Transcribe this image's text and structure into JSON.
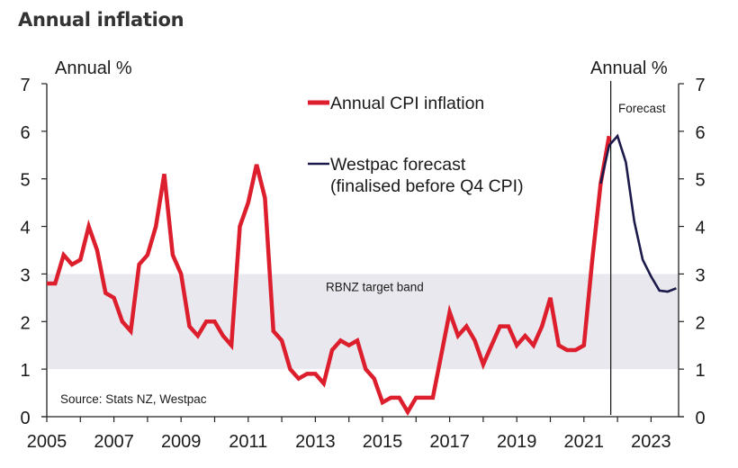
{
  "title": "Annual inflation",
  "chart_data": {
    "type": "line",
    "title": "Annual inflation",
    "xlabel": "",
    "ylabel_left": "Annual %",
    "ylabel_right": "Annual %",
    "xlim": [
      2005,
      2024
    ],
    "ylim": [
      0,
      7
    ],
    "x_ticks": [
      2005,
      2006,
      2007,
      2008,
      2009,
      2010,
      2011,
      2012,
      2013,
      2014,
      2015,
      2016,
      2017,
      2018,
      2019,
      2020,
      2021,
      2022,
      2023
    ],
    "x_tick_labels": [
      "2005",
      "2007",
      "2009",
      "2011",
      "2013",
      "2015",
      "2017",
      "2019",
      "2021",
      "2023"
    ],
    "x_tick_label_years": [
      2005,
      2007,
      2009,
      2011,
      2013,
      2015,
      2017,
      2019,
      2021,
      2023
    ],
    "y_ticks": [
      0,
      1,
      2,
      3,
      4,
      5,
      6,
      7
    ],
    "y_tick_labels": [
      "0",
      "1",
      "2",
      "3",
      "4",
      "5",
      "6",
      "7"
    ],
    "grid": false,
    "target_band": {
      "label": "RBNZ target band",
      "low": 1,
      "high": 3,
      "color": "#e8e8ee"
    },
    "forecast_marker": {
      "label": "Forecast",
      "x": 2021.8
    },
    "source": "Source: Stats NZ, Westpac",
    "legend_placement": "top-center",
    "series": [
      {
        "name": "Annual CPI inflation",
        "color": "#dc1e2d",
        "start": 2005.0,
        "step": 0.25,
        "values": [
          2.8,
          2.8,
          3.4,
          3.2,
          3.3,
          4.0,
          3.5,
          2.6,
          2.5,
          2.0,
          1.8,
          3.2,
          3.4,
          4.0,
          5.1,
          3.4,
          3.0,
          1.9,
          1.7,
          2.0,
          2.0,
          1.7,
          1.5,
          4.0,
          4.5,
          5.3,
          4.6,
          1.8,
          1.6,
          1.0,
          0.8,
          0.9,
          0.9,
          0.7,
          1.4,
          1.6,
          1.5,
          1.6,
          1.0,
          0.8,
          0.3,
          0.4,
          0.4,
          0.1,
          0.4,
          0.4,
          0.4,
          1.3,
          2.2,
          1.7,
          1.9,
          1.6,
          1.1,
          1.5,
          1.9,
          1.9,
          1.5,
          1.7,
          1.5,
          1.9,
          2.5,
          1.5,
          1.4,
          1.4,
          1.5,
          3.3,
          4.9,
          5.9
        ]
      },
      {
        "name": "Westpac forecast (finalised before Q4 CPI)",
        "legend_lines": [
          "Westpac forecast",
          "(finalised before Q4 CPI)"
        ],
        "color": "#1c1a4a",
        "start": 2021.5,
        "step": 0.25,
        "values": [
          4.9,
          5.7,
          5.9,
          5.35,
          4.1,
          3.3,
          2.95,
          2.65,
          2.63,
          2.7
        ]
      }
    ]
  }
}
